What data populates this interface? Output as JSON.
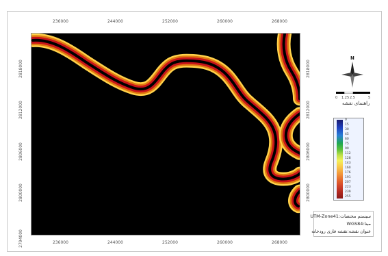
{
  "map": {
    "x_ticks": [
      "236000",
      "244000",
      "252000",
      "260000",
      "268000"
    ],
    "y_ticks": [
      "2818000",
      "2812000",
      "2806000",
      "2800000",
      "2794000"
    ],
    "background_color": "#000000",
    "buffer_colors": [
      "#ffd24a",
      "#e07a10",
      "#c8141a",
      "#2a0000"
    ]
  },
  "north_arrow": {
    "letter": "N",
    "icon": "north-arrow-icon"
  },
  "scale": {
    "labels": [
      "0",
      "1.25",
      "2.5",
      "",
      "5"
    ],
    "title": "راهنمای نقشه"
  },
  "legend": {
    "values": [
      "0",
      "15",
      "30",
      "45",
      "60",
      "75",
      "90",
      "112",
      "128",
      "143",
      "160",
      "176",
      "191",
      "207",
      "223",
      "239",
      "255"
    ],
    "colors": [
      "#1b1b6e",
      "#1e3fbf",
      "#2a7fd6",
      "#1fa850",
      "#5fc23a",
      "#bfe04a",
      "#f4f05a",
      "#f9c84a",
      "#f39b3c",
      "#e66b2e",
      "#d2442a",
      "#b02822",
      "#8a1a1a"
    ]
  },
  "info": {
    "line1": "سیستم مختصات:UTM-Zone41",
    "line2": "مبنا:WGS84",
    "line3": "عنوان نقشه:نقشه فازی رودخانه"
  }
}
